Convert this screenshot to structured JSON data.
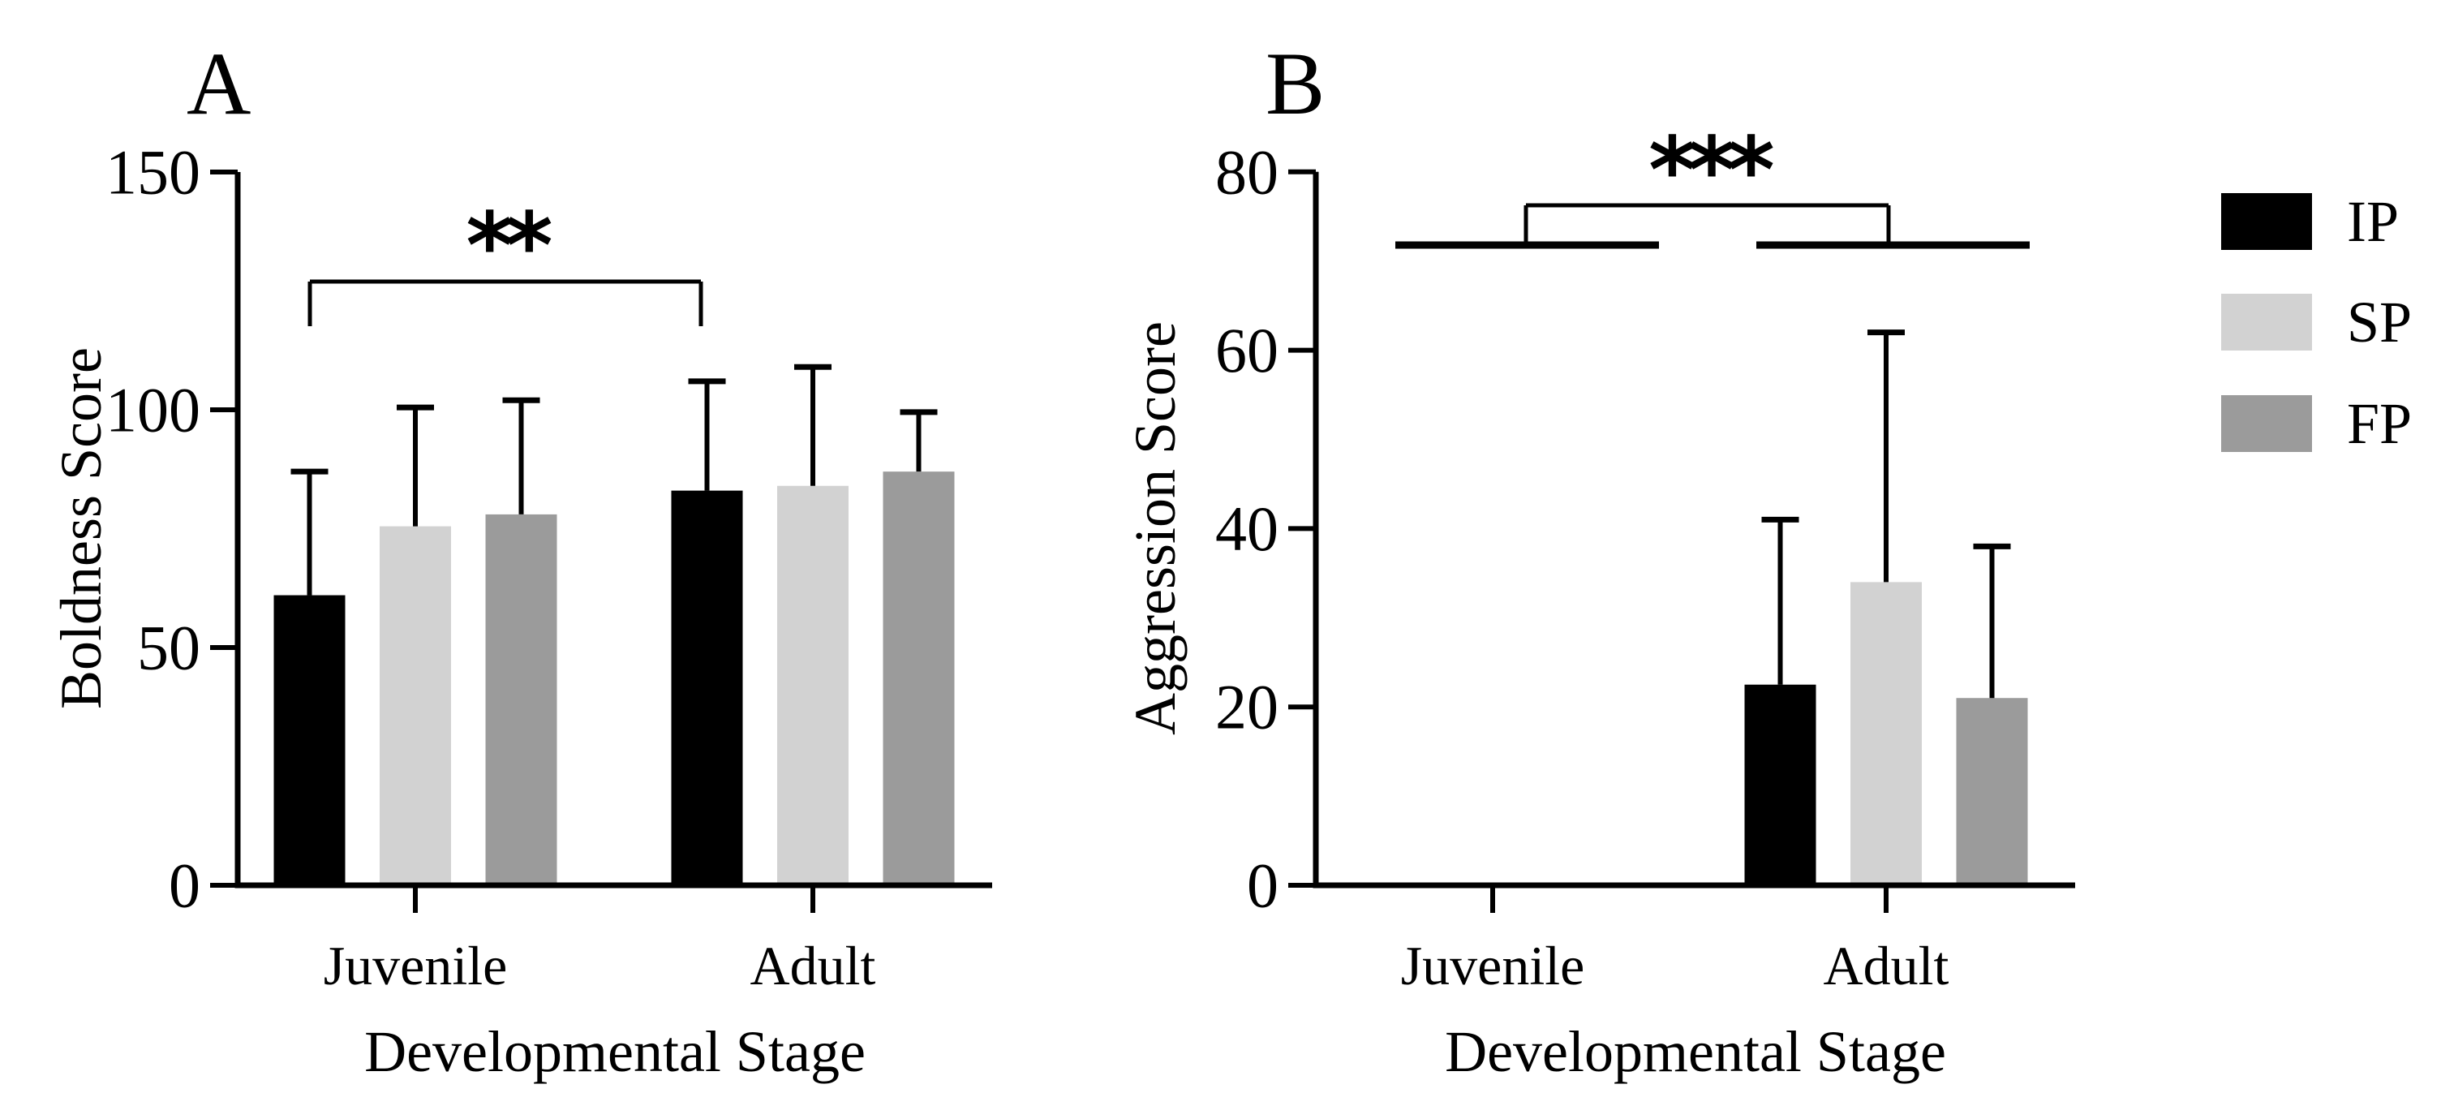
{
  "figure": {
    "background": "#ffffff",
    "legend": {
      "entries": [
        {
          "label": "IP",
          "color": "#000000"
        },
        {
          "label": "SP",
          "color": "#d2d2d2"
        },
        {
          "label": "FP",
          "color": "#9b9b9b"
        }
      ]
    }
  },
  "chart_data": [
    {
      "type": "bar",
      "panel_label": "A",
      "title": "",
      "xlabel": "Developmental Stage",
      "ylabel": "Boldness Score",
      "ylim": [
        0,
        150
      ],
      "yticks": [
        0,
        50,
        100,
        150
      ],
      "ytick_labels": [
        "0",
        "50",
        "100",
        "150"
      ],
      "grid": false,
      "error_bars": "upper only, capped",
      "categories": [
        "Juvenile",
        "Adult"
      ],
      "series": [
        {
          "name": "IP",
          "color": "#000000",
          "values": [
            61,
            83
          ],
          "errors": [
            26,
            23
          ]
        },
        {
          "name": "SP",
          "color": "#d2d2d2",
          "values": [
            75.5,
            84
          ],
          "errors": [
            25,
            25
          ]
        },
        {
          "name": "FP",
          "color": "#9b9b9b",
          "values": [
            78,
            87
          ],
          "errors": [
            24,
            12.5
          ]
        }
      ],
      "significance": {
        "label": "**",
        "comparison": "Juvenile IP vs Adult IP",
        "style": "bar-to-bar bracket",
        "bracket_y_value": 127,
        "bracket_drop_value": 117.5
      }
    },
    {
      "type": "bar",
      "panel_label": "B",
      "title": "",
      "xlabel": "Developmental Stage",
      "ylabel": "Aggression Score",
      "ylim": [
        0,
        80
      ],
      "yticks": [
        0,
        20,
        40,
        60,
        80
      ],
      "ytick_labels": [
        "0",
        "20",
        "40",
        "60",
        "80"
      ],
      "grid": false,
      "error_bars": "upper only, capped",
      "categories": [
        "Juvenile",
        "Adult"
      ],
      "series": [
        {
          "name": "IP",
          "color": "#000000",
          "values": [
            0,
            22.5
          ],
          "errors": [
            0,
            18.5
          ]
        },
        {
          "name": "SP",
          "color": "#d2d2d2",
          "values": [
            0,
            34
          ],
          "errors": [
            0,
            28
          ]
        },
        {
          "name": "FP",
          "color": "#9b9b9b",
          "values": [
            0,
            21
          ],
          "errors": [
            0,
            17
          ]
        }
      ],
      "significance": {
        "label": "***",
        "comparison": "Juvenile group vs Adult group",
        "style": "group-mean bracket with group span lines",
        "group_line_y_value": 71.5,
        "bracket_y_value": 76
      }
    }
  ]
}
